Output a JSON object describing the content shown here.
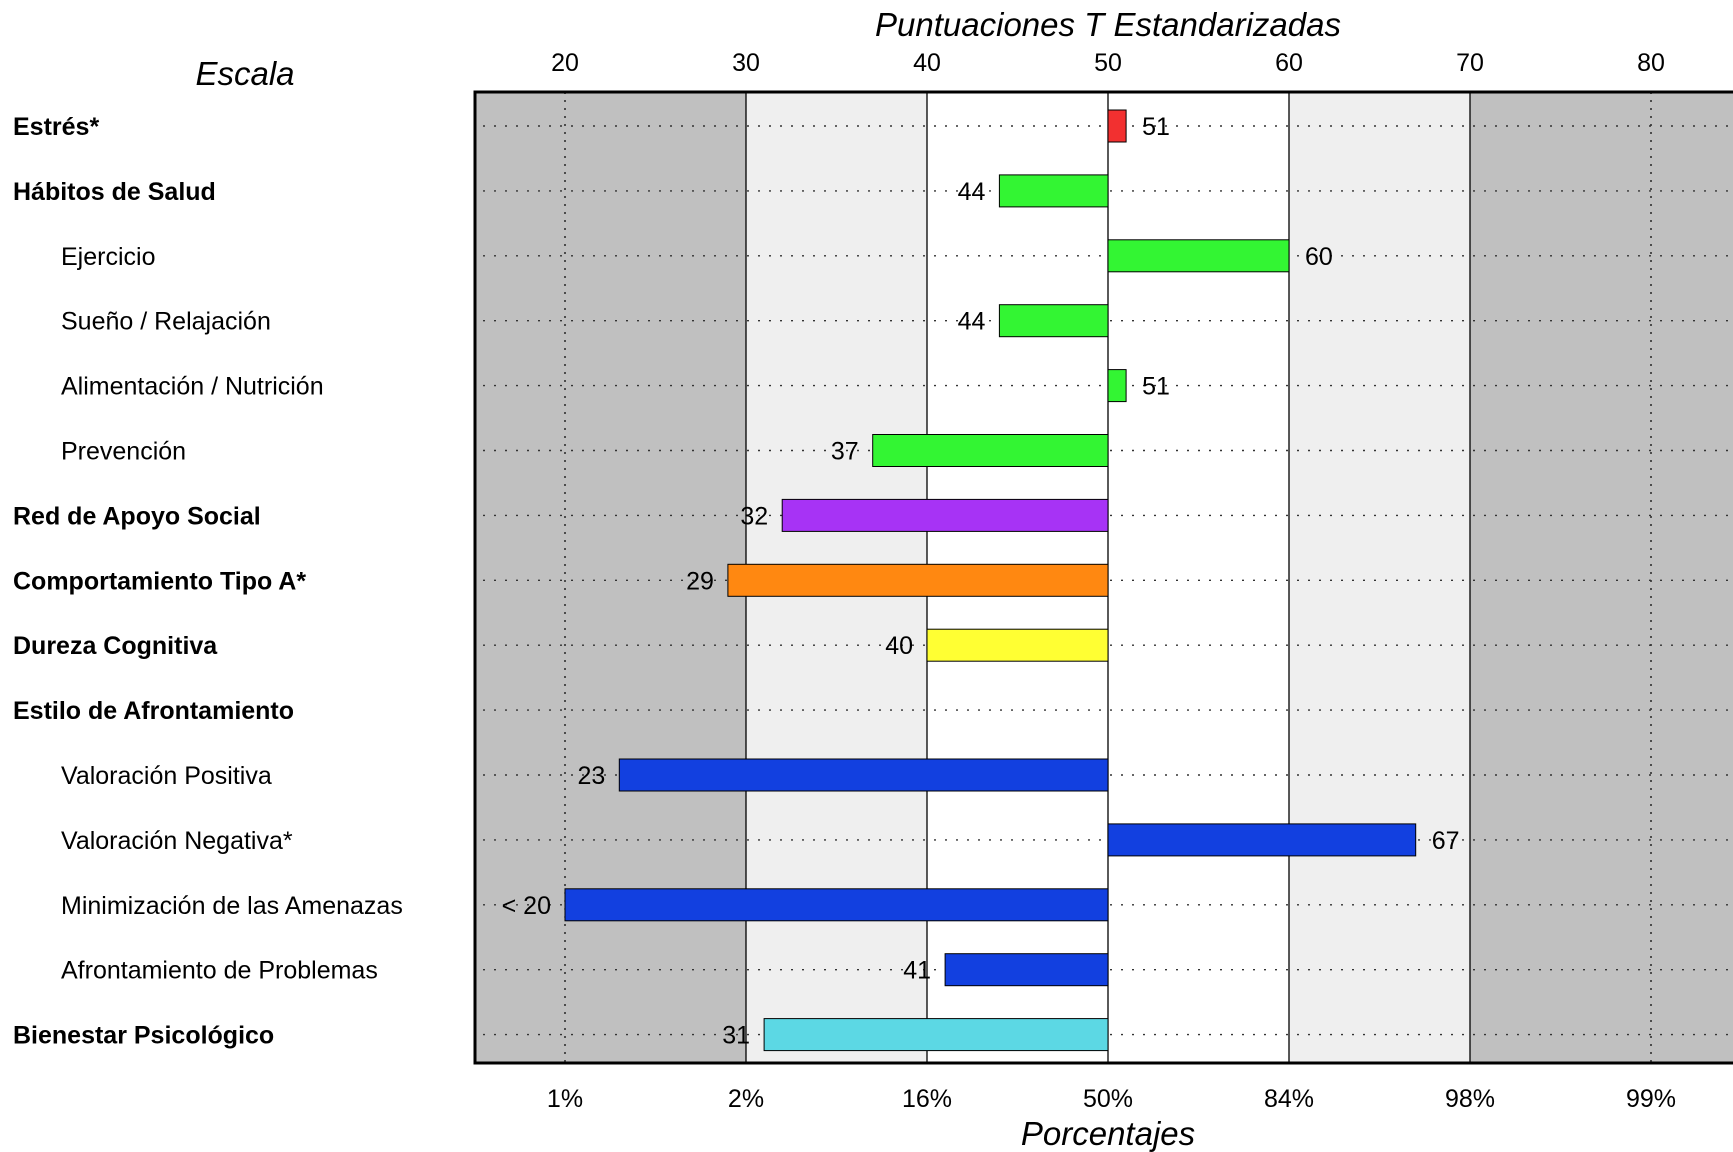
{
  "chart_data": {
    "type": "bar",
    "orientation": "horizontal",
    "title": "Puntuaciones T Estandarizadas",
    "category_header": "Escala",
    "xlabel_bottom": "Porcentajes",
    "xlim": [
      15,
      85
    ],
    "baseline": 50,
    "x_ticks": [
      20,
      30,
      40,
      50,
      60,
      70,
      80
    ],
    "x_tick_labels": [
      "20",
      "30",
      "40",
      "50",
      "60",
      "70",
      "80"
    ],
    "percentile_labels": [
      "1%",
      "2%",
      "16%",
      "50%",
      "84%",
      "98%",
      "99%"
    ],
    "background_bands": [
      {
        "from": 15,
        "to": 30,
        "color": "#c0c0c0"
      },
      {
        "from": 30,
        "to": 40,
        "color": "#efefef"
      },
      {
        "from": 40,
        "to": 60,
        "color": "#ffffff"
      },
      {
        "from": 60,
        "to": 70,
        "color": "#efefef"
      },
      {
        "from": 70,
        "to": 85,
        "color": "#c0c0c0"
      }
    ],
    "rows": [
      {
        "name": "Estrés*",
        "bold": true,
        "indent": false,
        "value": 51,
        "label": "51",
        "color": "#f23030"
      },
      {
        "name": "Hábitos de Salud",
        "bold": true,
        "indent": false,
        "value": 44,
        "label": "44",
        "color": "#33f533"
      },
      {
        "name": "Ejercicio",
        "bold": false,
        "indent": true,
        "value": 60,
        "label": "60",
        "color": "#33f533"
      },
      {
        "name": "Sueño / Relajación",
        "bold": false,
        "indent": true,
        "value": 44,
        "label": "44",
        "color": "#33f533"
      },
      {
        "name": "Alimentación / Nutrición",
        "bold": false,
        "indent": true,
        "value": 51,
        "label": "51",
        "color": "#33f533"
      },
      {
        "name": "Prevención",
        "bold": false,
        "indent": true,
        "value": 37,
        "label": "37",
        "color": "#33f533"
      },
      {
        "name": "Red de Apoyo Social",
        "bold": true,
        "indent": false,
        "value": 32,
        "label": "32",
        "color": "#a733f5"
      },
      {
        "name": "Comportamiento Tipo A*",
        "bold": true,
        "indent": false,
        "value": 29,
        "label": "29",
        "color": "#ff8811"
      },
      {
        "name": "Dureza Cognitiva",
        "bold": true,
        "indent": false,
        "value": 40,
        "label": "40",
        "color": "#ffff33"
      },
      {
        "name": "Estilo de Afrontamiento",
        "bold": true,
        "indent": false,
        "value": null,
        "label": "",
        "color": ""
      },
      {
        "name": "Valoración Positiva",
        "bold": false,
        "indent": true,
        "value": 23,
        "label": "23",
        "color": "#1240e0"
      },
      {
        "name": "Valoración Negativa*",
        "bold": false,
        "indent": true,
        "value": 67,
        "label": "67",
        "color": "#1240e0"
      },
      {
        "name": "Minimización de las Amenazas",
        "bold": false,
        "indent": true,
        "value": 20,
        "label": "< 20",
        "color": "#1240e0"
      },
      {
        "name": "Afrontamiento de Problemas",
        "bold": false,
        "indent": true,
        "value": 41,
        "label": "41",
        "color": "#1240e0"
      },
      {
        "name": "Bienestar Psicológico",
        "bold": true,
        "indent": false,
        "value": 31,
        "label": "31",
        "color": "#5cd8e4"
      }
    ]
  }
}
